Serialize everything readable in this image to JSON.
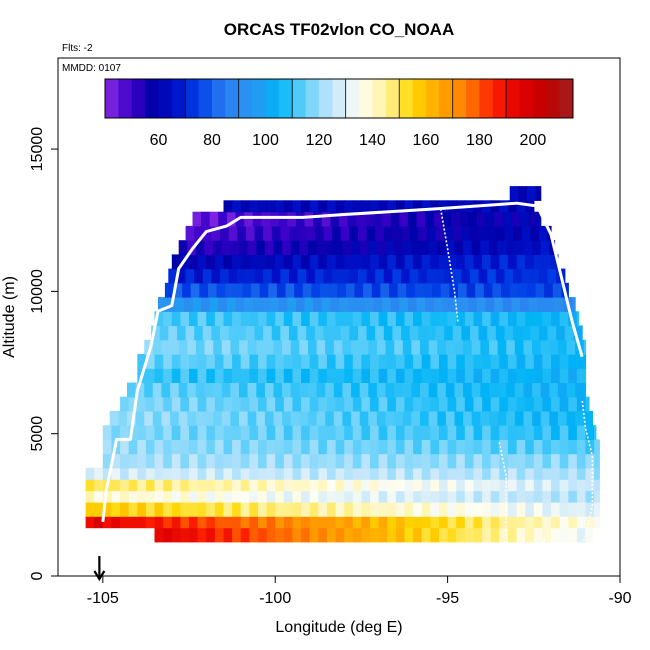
{
  "chart_data": {
    "type": "heatmap",
    "title": "ORCAS TF02vlon CO_NOAA",
    "flights_note": "Flts: -2",
    "date_note": "MMDD: 0107",
    "xlabel": "Longitude (deg E)",
    "ylabel": "Altitude (m)",
    "xlim": [
      -106.3,
      -90
    ],
    "ylim": [
      0,
      18200
    ],
    "x_ticks": [
      -105,
      -100,
      -95,
      -90
    ],
    "x_tick_labels": [
      "-105",
      "-100",
      "-95",
      "-90"
    ],
    "y_ticks": [
      0,
      5000,
      10000,
      15000
    ],
    "y_tick_labels": [
      "0",
      "5000",
      "10000",
      "15000"
    ],
    "colorbar": {
      "range": [
        40,
        215
      ],
      "tick_values": [
        60,
        80,
        100,
        120,
        140,
        160,
        180,
        200
      ],
      "tick_labels": [
        "60",
        "80",
        "100",
        "120",
        "140",
        "160",
        "180",
        "200"
      ],
      "placement": "top, inside plot",
      "palette": [
        {
          "v": 40,
          "color": "#8a2be2"
        },
        {
          "v": 50,
          "color": "#3a00c8"
        },
        {
          "v": 58,
          "color": "#0000a8"
        },
        {
          "v": 66,
          "color": "#0010c8"
        },
        {
          "v": 75,
          "color": "#0040e6"
        },
        {
          "v": 85,
          "color": "#2a7ff0"
        },
        {
          "v": 95,
          "color": "#2a95f2"
        },
        {
          "v": 105,
          "color": "#00b4f6"
        },
        {
          "v": 115,
          "color": "#6ad2fa"
        },
        {
          "v": 125,
          "color": "#c4e6fb"
        },
        {
          "v": 135,
          "color": "#fdfdf4"
        },
        {
          "v": 145,
          "color": "#fff3a0"
        },
        {
          "v": 155,
          "color": "#ffd800"
        },
        {
          "v": 165,
          "color": "#ffa500"
        },
        {
          "v": 175,
          "color": "#ff7f00"
        },
        {
          "v": 185,
          "color": "#ff2000"
        },
        {
          "v": 195,
          "color": "#e00000"
        },
        {
          "v": 205,
          "color": "#c00000"
        },
        {
          "v": 215,
          "color": "#a02020"
        }
      ]
    },
    "grid": false,
    "arrow_marker": {
      "lon": -105.1,
      "description": "downward arrow near x-axis"
    },
    "curtain_layers": [
      {
        "alt": 1200,
        "lon_min": -103.5,
        "lon_max": -90.8,
        "co_west": 195,
        "co_east": 130
      },
      {
        "alt": 1700,
        "lon_min": -105.5,
        "lon_max": -90.6,
        "co_west": 195,
        "co_east": 135
      },
      {
        "alt": 2100,
        "lon_min": -105.5,
        "lon_max": -90.6,
        "co_west": 158,
        "co_east": 128
      },
      {
        "alt": 2600,
        "lon_min": -105.5,
        "lon_max": -90.6,
        "co_west": 140,
        "co_east": 122
      },
      {
        "alt": 3000,
        "lon_min": -105.5,
        "lon_max": -90.6,
        "co_west": 150,
        "co_east": 125
      },
      {
        "alt": 3400,
        "lon_min": -105.5,
        "lon_max": -90.6,
        "co_west": 128,
        "co_east": 122
      },
      {
        "alt": 3800,
        "lon_min": -105.0,
        "lon_max": -90.6,
        "co_west": 122,
        "co_east": 118
      },
      {
        "alt": 4300,
        "lon_min": -105.0,
        "lon_max": -90.6,
        "co_west": 120,
        "co_east": 112
      },
      {
        "alt": 4800,
        "lon_min": -105.0,
        "lon_max": -90.7,
        "co_west": 118,
        "co_east": 108
      },
      {
        "alt": 5300,
        "lon_min": -104.8,
        "lon_max": -90.8,
        "co_west": 120,
        "co_east": 105
      },
      {
        "alt": 5800,
        "lon_min": -104.5,
        "lon_max": -90.9,
        "co_west": 118,
        "co_east": 105
      },
      {
        "alt": 6300,
        "lon_min": -104.3,
        "lon_max": -91.0,
        "co_west": 115,
        "co_east": 104
      },
      {
        "alt": 6800,
        "lon_min": -104.0,
        "lon_max": -91.0,
        "co_west": 110,
        "co_east": 104
      },
      {
        "alt": 7300,
        "lon_min": -104.0,
        "lon_max": -91.0,
        "co_west": 115,
        "co_east": 105
      },
      {
        "alt": 7800,
        "lon_min": -103.8,
        "lon_max": -91.0,
        "co_west": 118,
        "co_east": 107
      },
      {
        "alt": 8300,
        "lon_min": -103.6,
        "lon_max": -91.1,
        "co_west": 115,
        "co_east": 105
      },
      {
        "alt": 8800,
        "lon_min": -103.5,
        "lon_max": -91.2,
        "co_west": 112,
        "co_east": 105
      },
      {
        "alt": 9300,
        "lon_min": -103.4,
        "lon_max": -91.3,
        "co_west": 95,
        "co_east": 90
      },
      {
        "alt": 9800,
        "lon_min": -103.2,
        "lon_max": -91.5,
        "co_west": 78,
        "co_east": 75
      },
      {
        "alt": 10300,
        "lon_min": -103.1,
        "lon_max": -91.6,
        "co_west": 68,
        "co_east": 72
      },
      {
        "alt": 10800,
        "lon_min": -103.0,
        "lon_max": -91.8,
        "co_west": 60,
        "co_east": 70
      },
      {
        "alt": 11300,
        "lon_min": -102.8,
        "lon_max": -91.9,
        "co_west": 52,
        "co_east": 65
      },
      {
        "alt": 11800,
        "lon_min": -102.6,
        "lon_max": -92.0,
        "co_west": 48,
        "co_east": 62
      },
      {
        "alt": 12300,
        "lon_min": -102.4,
        "lon_max": -92.3,
        "co_west": 45,
        "co_east": 60
      },
      {
        "alt": 12800,
        "lon_min": -101.5,
        "lon_max": -92.5,
        "co_west": 62,
        "co_east": 62
      },
      {
        "alt": 13200,
        "lon_min": -93.2,
        "lon_max": -92.3,
        "co_west": 62,
        "co_east": 62
      }
    ],
    "flight_track": [
      [
        -105.0,
        1900
      ],
      [
        -104.9,
        3000
      ],
      [
        -104.6,
        4800
      ],
      [
        -104.2,
        4800
      ],
      [
        -104.0,
        6500
      ],
      [
        -103.6,
        8100
      ],
      [
        -103.4,
        9300
      ],
      [
        -103.0,
        9500
      ],
      [
        -102.8,
        10800
      ],
      [
        -102.4,
        11500
      ],
      [
        -102.0,
        12100
      ],
      [
        -101.4,
        12300
      ],
      [
        -101.0,
        12600
      ],
      [
        -99.2,
        12600
      ],
      [
        -98.0,
        12700
      ],
      [
        -95.3,
        12900
      ],
      [
        -93.0,
        13100
      ],
      [
        -92.4,
        13000
      ],
      [
        -92.0,
        12000
      ],
      [
        -91.7,
        10500
      ],
      [
        -91.4,
        9000
      ],
      [
        -91.1,
        7700
      ]
    ],
    "flight_track_2": [
      [
        -95.2,
        12900
      ],
      [
        -95.0,
        11500
      ],
      [
        -94.8,
        10000
      ],
      [
        -94.7,
        8900
      ]
    ],
    "flight_track_3": [
      [
        -93.5,
        4700
      ],
      [
        -93.3,
        3500
      ],
      [
        -93.3,
        1500
      ],
      [
        -93.2,
        100
      ],
      [
        -92.8,
        1300
      ],
      [
        -92.5,
        100
      ],
      [
        -92.2,
        1300
      ],
      [
        -91.9,
        100
      ],
      [
        -91.7,
        1200
      ],
      [
        -91.5,
        100
      ],
      [
        -91.0,
        1400
      ],
      [
        -90.8,
        2500
      ],
      [
        -90.8,
        4200
      ],
      [
        -91.0,
        5200
      ],
      [
        -91.1,
        6200
      ]
    ]
  }
}
